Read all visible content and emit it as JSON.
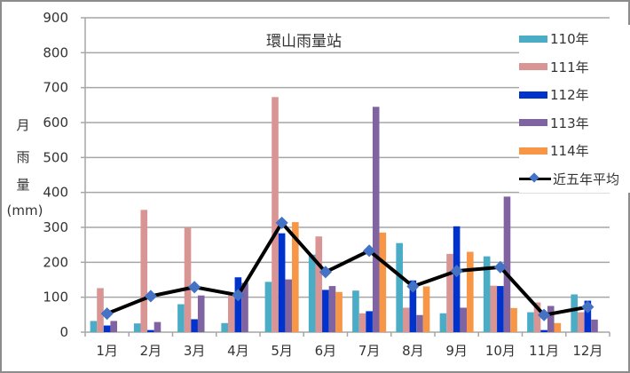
{
  "chart_data": {
    "type": "bar",
    "title": "環山雨量站",
    "xlabel": "",
    "ylabel": "月雨量(mm)",
    "ylabel_chars": [
      "月",
      "雨",
      "量",
      "(mm)"
    ],
    "ylim": [
      0,
      900
    ],
    "yticks": [
      0,
      100,
      200,
      300,
      400,
      500,
      600,
      700,
      800,
      900
    ],
    "grid": true,
    "legend_position": "right",
    "categories": [
      "1月",
      "2月",
      "3月",
      "4月",
      "5月",
      "6月",
      "7月",
      "8月",
      "9月",
      "10月",
      "11月",
      "12月"
    ],
    "series": [
      {
        "name": "110年",
        "type": "bar",
        "color": "#4bacc6",
        "values": [
          32,
          25,
          80,
          26,
          144,
          222,
          119,
          255,
          54,
          217,
          57,
          108
        ]
      },
      {
        "name": "111年",
        "type": "bar",
        "color": "#d99594",
        "values": [
          126,
          350,
          299,
          105,
          673,
          274,
          54,
          70,
          224,
          133,
          85,
          57
        ]
      },
      {
        "name": "112年",
        "type": "bar",
        "color": "#0033cc",
        "values": [
          19,
          6,
          37,
          157,
          283,
          121,
          60,
          148,
          303,
          132,
          6,
          90
        ]
      },
      {
        "name": "113年",
        "type": "bar",
        "color": "#8064a2",
        "values": [
          32,
          29,
          105,
          141,
          151,
          132,
          645,
          49,
          70,
          388,
          75,
          36
        ]
      },
      {
        "name": "114年",
        "type": "bar",
        "color": "#f79646",
        "values": [
          null,
          null,
          null,
          null,
          315,
          115,
          285,
          131,
          230,
          69,
          26,
          null
        ]
      },
      {
        "name": "近五年平均",
        "type": "line",
        "color": "#000000",
        "marker_color": "#4472c4",
        "values": [
          53,
          103,
          129,
          106,
          313,
          172,
          233,
          131,
          175,
          186,
          49,
          72
        ]
      }
    ]
  }
}
